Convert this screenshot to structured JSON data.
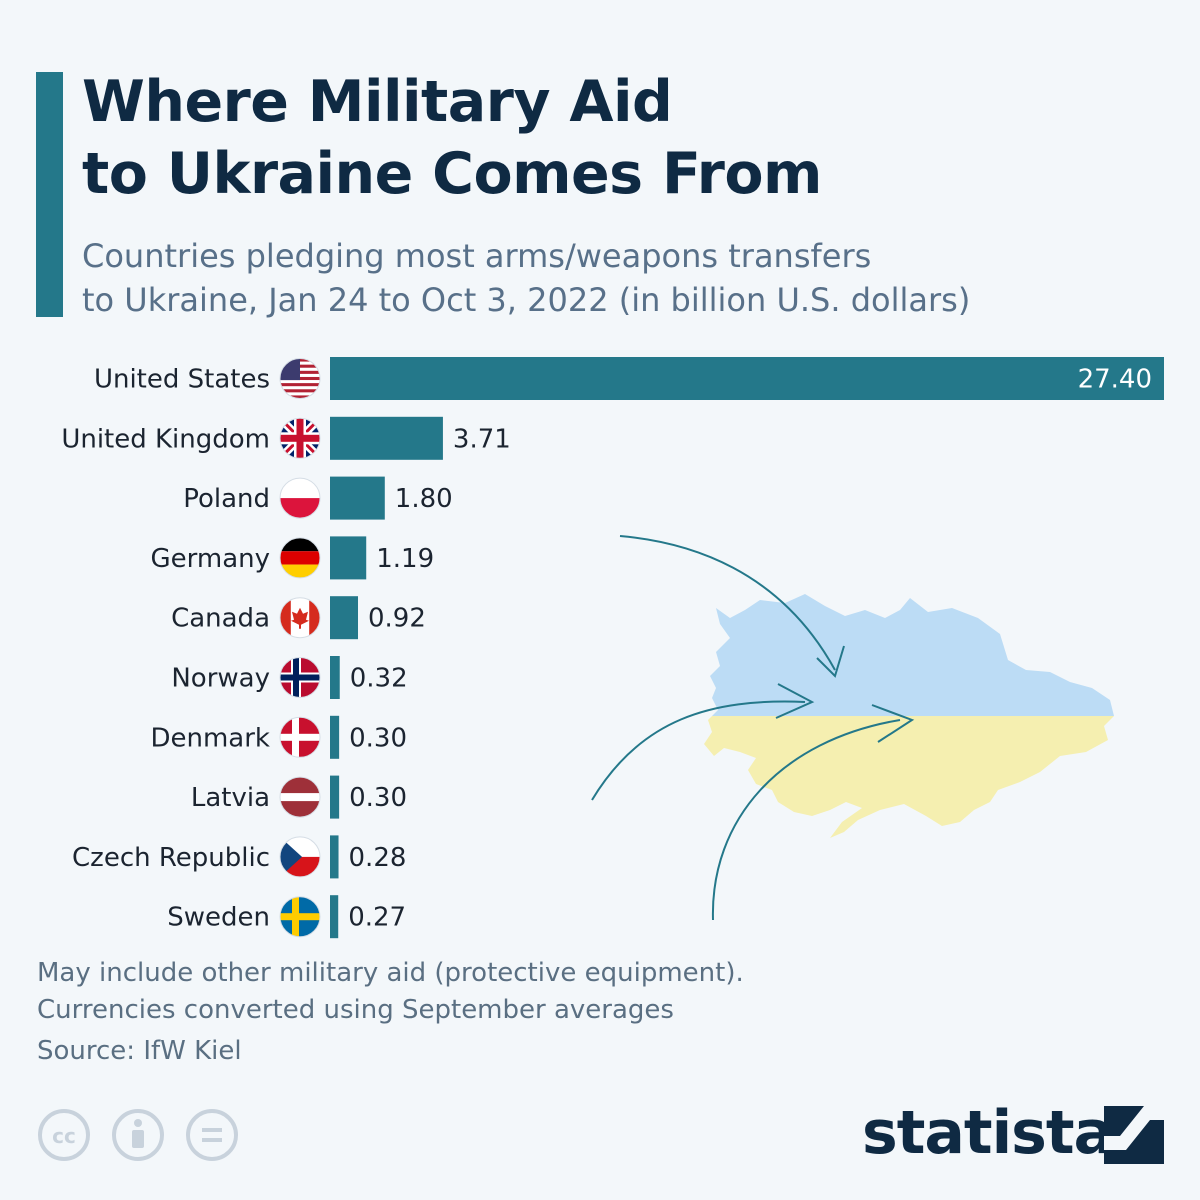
{
  "header": {
    "title_line1": "Where Military Aid",
    "title_line2": "to Ukraine Comes From",
    "subtitle_line1": "Countries pledging most arms/weapons transfers",
    "subtitle_line2": "to Ukraine, Jan 24 to Oct 3, 2022 (in billion U.S. dollars)"
  },
  "chart_data": {
    "type": "bar",
    "orientation": "horizontal",
    "title": "Where Military Aid to Ukraine Comes From",
    "subtitle": "Countries pledging most arms/weapons transfers to Ukraine, Jan 24 to Oct 3, 2022 (in billion U.S. dollars)",
    "categories": [
      "United States",
      "United Kingdom",
      "Poland",
      "Germany",
      "Canada",
      "Norway",
      "Denmark",
      "Latvia",
      "Czech Republic",
      "Sweden"
    ],
    "values": [
      27.4,
      3.71,
      1.8,
      1.19,
      0.92,
      0.32,
      0.3,
      0.3,
      0.28,
      0.27
    ],
    "value_labels": [
      "27.40",
      "3.71",
      "1.80",
      "1.19",
      "0.92",
      "0.32",
      "0.30",
      "0.30",
      "0.28",
      "0.27"
    ],
    "flags": [
      "us-flag-icon",
      "uk-flag-icon",
      "poland-flag-icon",
      "germany-flag-icon",
      "canada-flag-icon",
      "norway-flag-icon",
      "denmark-flag-icon",
      "latvia-flag-icon",
      "czech-flag-icon",
      "sweden-flag-icon"
    ],
    "bar_color": "#24788a",
    "xlim": [
      0,
      27.4
    ],
    "grid": false,
    "legend": "none"
  },
  "footer": {
    "note_line1": "May include other military aid (protective equipment).",
    "note_line2": "Currencies converted using September averages",
    "source": "Source: IfW Kiel",
    "brand": "statista",
    "license_icons": [
      "cc-icon",
      "attribution-icon",
      "no-derivatives-icon"
    ]
  },
  "colors": {
    "accent": "#24788a",
    "title": "#0f2a43",
    "subtitle": "#587089",
    "ukraine_blue": "#bcdcf5",
    "ukraine_yellow": "#f5efb0"
  }
}
